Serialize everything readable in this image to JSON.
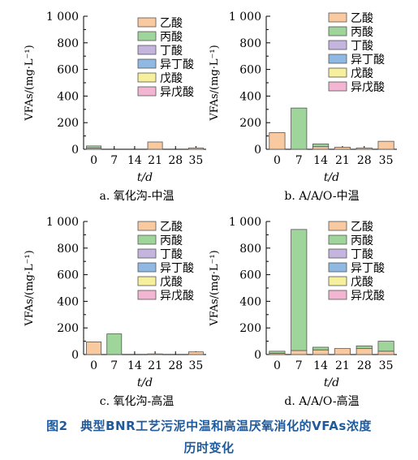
{
  "chart_data": [
    {
      "type": "bar",
      "stacked": true,
      "panel_label": "a. 氧化沟-中温",
      "xlabel": "t/d",
      "ylabel": "VFAs/(mg·L⁻¹)",
      "ylim": [
        0,
        1000
      ],
      "y_ticks": [
        "0",
        "200",
        "400",
        "600",
        "800",
        "1 000"
      ],
      "categories": [
        "0",
        "7",
        "14",
        "21",
        "28",
        "35"
      ],
      "series": [
        {
          "name": "乙酸",
          "color": "#f9c9a0",
          "values": [
            10,
            0,
            0,
            55,
            0,
            10
          ]
        },
        {
          "name": "丙酸",
          "color": "#9fd59a",
          "values": [
            15,
            0,
            0,
            0,
            0,
            0
          ]
        },
        {
          "name": "丁酸",
          "color": "#c4b5df",
          "values": [
            0,
            0,
            0,
            0,
            0,
            0
          ]
        },
        {
          "name": "异丁酸",
          "color": "#8fb8e2",
          "values": [
            0,
            0,
            0,
            0,
            0,
            0
          ]
        },
        {
          "name": "戊酸",
          "color": "#f6ef9b",
          "values": [
            0,
            0,
            0,
            0,
            0,
            0
          ]
        },
        {
          "name": "异戊酸",
          "color": "#f2b6d3",
          "values": [
            0,
            0,
            0,
            0,
            0,
            0
          ]
        }
      ],
      "legend_position": "top-right"
    },
    {
      "type": "bar",
      "stacked": true,
      "panel_label": "b. A/A/O-中温",
      "xlabel": "t/d",
      "ylabel": "VFAs/(mg·L⁻¹)",
      "ylim": [
        0,
        1000
      ],
      "y_ticks": [
        "0",
        "200",
        "400",
        "600",
        "800",
        "1 000"
      ],
      "categories": [
        "0",
        "7",
        "14",
        "21",
        "28",
        "35"
      ],
      "series": [
        {
          "name": "乙酸",
          "color": "#f9c9a0",
          "values": [
            125,
            0,
            20,
            15,
            10,
            60
          ]
        },
        {
          "name": "丙酸",
          "color": "#9fd59a",
          "values": [
            0,
            310,
            20,
            0,
            0,
            0
          ]
        },
        {
          "name": "丁酸",
          "color": "#c4b5df",
          "values": [
            0,
            0,
            0,
            0,
            0,
            0
          ]
        },
        {
          "name": "异丁酸",
          "color": "#8fb8e2",
          "values": [
            0,
            0,
            0,
            0,
            0,
            0
          ]
        },
        {
          "name": "戊酸",
          "color": "#f6ef9b",
          "values": [
            0,
            0,
            0,
            0,
            0,
            0
          ]
        },
        {
          "name": "异戊酸",
          "color": "#f2b6d3",
          "values": [
            0,
            0,
            0,
            0,
            0,
            0
          ]
        }
      ],
      "legend_position": "top-right"
    },
    {
      "type": "bar",
      "stacked": true,
      "panel_label": "c. 氧化沟-高温",
      "xlabel": "t/d",
      "ylabel": "VFAs/(mg·L⁻¹)",
      "ylim": [
        0,
        1000
      ],
      "y_ticks": [
        "0",
        "200",
        "400",
        "600",
        "800",
        "1 000"
      ],
      "categories": [
        "0",
        "7",
        "14",
        "21",
        "28",
        "35"
      ],
      "series": [
        {
          "name": "乙酸",
          "color": "#f9c9a0",
          "values": [
            95,
            0,
            0,
            5,
            0,
            20
          ]
        },
        {
          "name": "丙酸",
          "color": "#9fd59a",
          "values": [
            0,
            155,
            0,
            0,
            0,
            0
          ]
        },
        {
          "name": "丁酸",
          "color": "#c4b5df",
          "values": [
            0,
            0,
            0,
            0,
            0,
            0
          ]
        },
        {
          "name": "异丁酸",
          "color": "#8fb8e2",
          "values": [
            0,
            0,
            0,
            0,
            0,
            0
          ]
        },
        {
          "name": "戊酸",
          "color": "#f6ef9b",
          "values": [
            0,
            0,
            0,
            0,
            0,
            0
          ]
        },
        {
          "name": "异戊酸",
          "color": "#f2b6d3",
          "values": [
            0,
            0,
            0,
            0,
            0,
            0
          ]
        }
      ],
      "legend_position": "top-right"
    },
    {
      "type": "bar",
      "stacked": true,
      "panel_label": "d. A/A/O-高温",
      "xlabel": "t/d",
      "ylabel": "VFAs/(mg·L⁻¹)",
      "ylim": [
        0,
        1000
      ],
      "y_ticks": [
        "0",
        "200",
        "400",
        "600",
        "800",
        "1 000"
      ],
      "categories": [
        "0",
        "7",
        "14",
        "21",
        "28",
        "35"
      ],
      "series": [
        {
          "name": "乙酸",
          "color": "#f9c9a0",
          "values": [
            10,
            30,
            35,
            45,
            45,
            25
          ]
        },
        {
          "name": "丙酸",
          "color": "#9fd59a",
          "values": [
            15,
            910,
            20,
            0,
            20,
            75
          ]
        },
        {
          "name": "丁酸",
          "color": "#c4b5df",
          "values": [
            0,
            0,
            0,
            0,
            0,
            0
          ]
        },
        {
          "name": "异丁酸",
          "color": "#8fb8e2",
          "values": [
            0,
            0,
            0,
            0,
            0,
            0
          ]
        },
        {
          "name": "戊酸",
          "color": "#f6ef9b",
          "values": [
            0,
            0,
            0,
            0,
            0,
            0
          ]
        },
        {
          "name": "异戊酸",
          "color": "#f2b6d3",
          "values": [
            0,
            0,
            0,
            0,
            0,
            0
          ]
        }
      ],
      "legend_position": "top-right"
    }
  ],
  "caption": {
    "line1": "图2　典型BNR工艺污泥中温和高温厌氧消化的VFAs浓度",
    "line2": "历时变化"
  },
  "colors": {
    "caption": "#1f5a9b",
    "axis": "#000000"
  }
}
